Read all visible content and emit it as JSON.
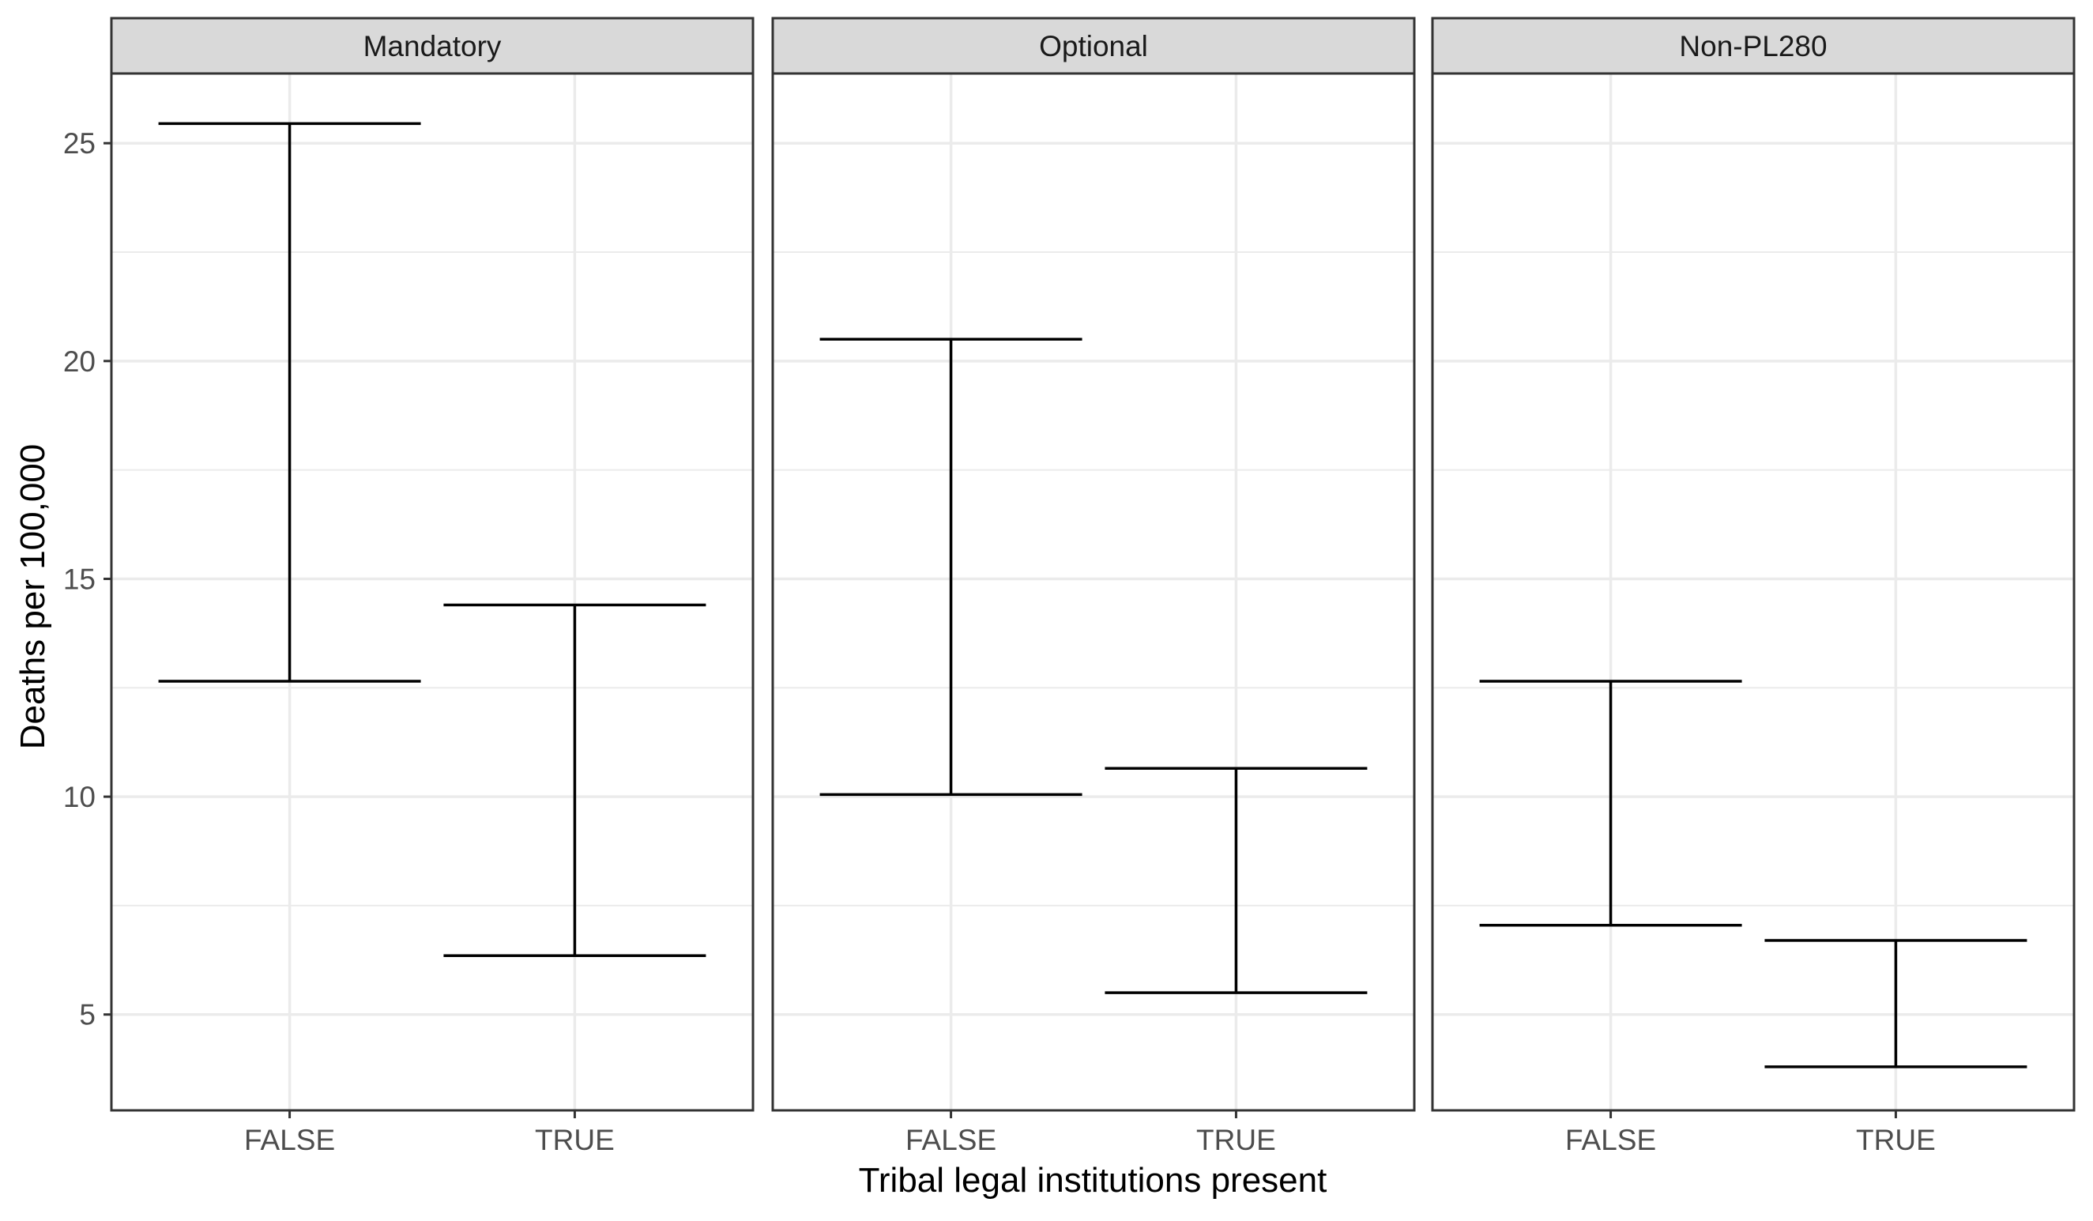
{
  "chart_data": {
    "type": "errorbar",
    "facet_by": "",
    "panels": [
      {
        "name": "Mandatory",
        "bars": [
          {
            "x": "FALSE",
            "ymin": 12.65,
            "ymax": 25.45
          },
          {
            "x": "TRUE",
            "ymin": 6.35,
            "ymax": 14.4
          }
        ]
      },
      {
        "name": "Optional",
        "bars": [
          {
            "x": "FALSE",
            "ymin": 10.05,
            "ymax": 20.5
          },
          {
            "x": "TRUE",
            "ymin": 5.5,
            "ymax": 10.65
          }
        ]
      },
      {
        "name": "Non-PL280",
        "bars": [
          {
            "x": "FALSE",
            "ymin": 7.05,
            "ymax": 12.65
          },
          {
            "x": "TRUE",
            "ymin": 3.8,
            "ymax": 6.7
          }
        ]
      }
    ],
    "categories": [
      "FALSE",
      "TRUE"
    ],
    "ylim": [
      2.8,
      26.6
    ],
    "yticks": [
      5,
      10,
      15,
      20,
      25
    ],
    "ytick_labels": [
      "5",
      "10",
      "15",
      "20",
      "25"
    ],
    "xlabel": "Tribal legal institutions present",
    "ylabel": "Deaths per 100,000",
    "grid": true,
    "legend": "none",
    "colors": {
      "bar": "#000000",
      "grid": "#ebebeb",
      "strip_fill": "#d9d9d9",
      "panel_border": "#333333"
    }
  }
}
